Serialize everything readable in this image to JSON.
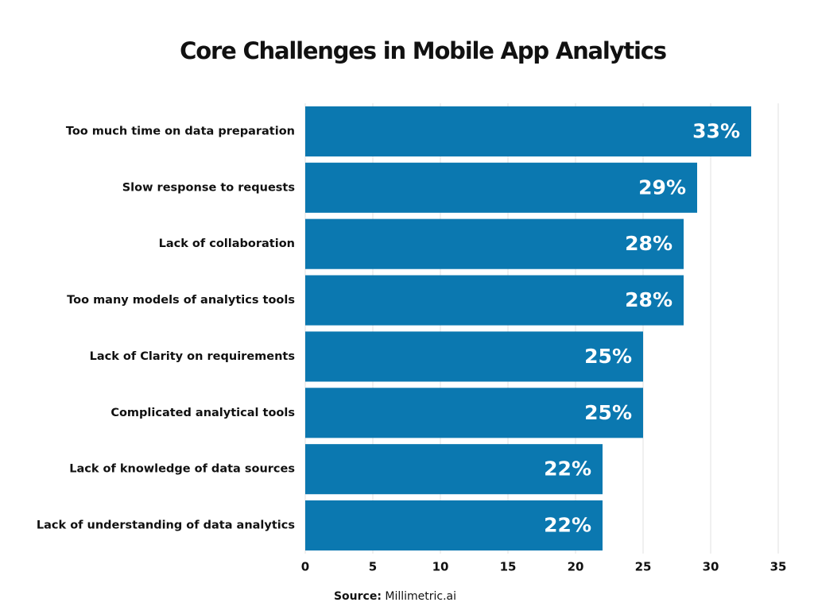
{
  "chart_data": {
    "type": "bar",
    "orientation": "horizontal",
    "title": "Core Challenges in Mobile App Analytics",
    "categories": [
      "Too much time on data preparation",
      "Slow response to requests",
      "Lack of collaboration",
      "Too many models of analytics tools",
      "Lack of Clarity on requirements",
      "Complicated analytical tools",
      "Lack of knowledge of data sources",
      "Lack of understanding of data analytics"
    ],
    "values": [
      33,
      29,
      28,
      28,
      25,
      25,
      22,
      22
    ],
    "value_labels": [
      "33%",
      "29%",
      "28%",
      "28%",
      "25%",
      "25%",
      "22%",
      "22%"
    ],
    "color": "#0b78b0",
    "xlim": [
      0,
      35
    ],
    "xticks": [
      0,
      5,
      10,
      15,
      20,
      25,
      30,
      35
    ],
    "grid": true,
    "source_label": "Source:",
    "source": "Millimetric.ai"
  }
}
